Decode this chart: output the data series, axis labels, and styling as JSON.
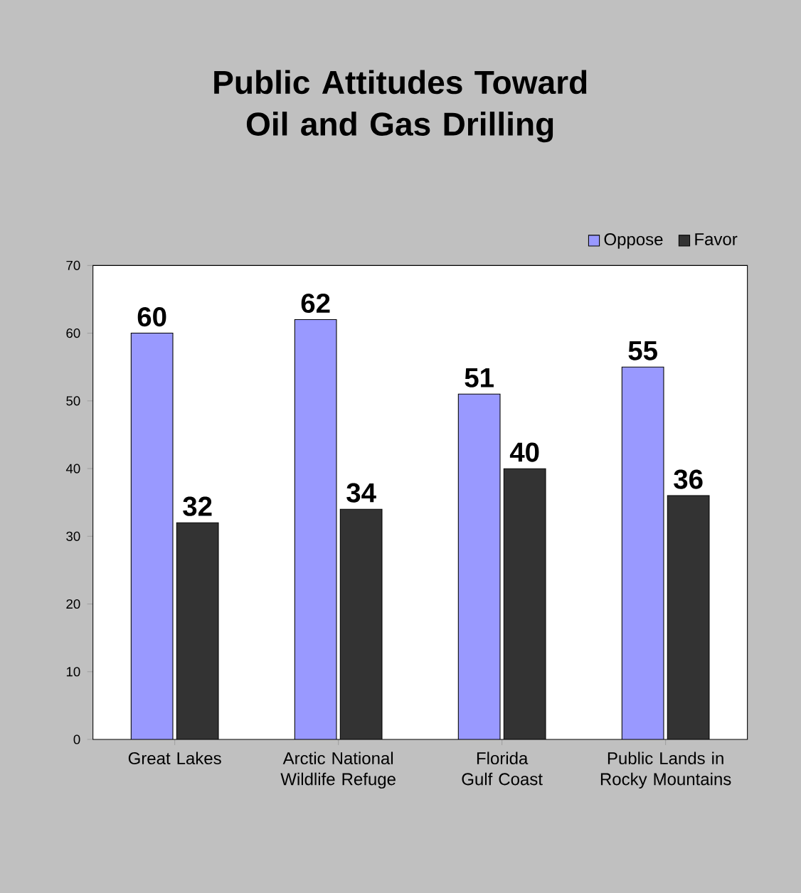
{
  "chart_data": {
    "type": "bar",
    "title": "Public Attitudes Toward Oil and Gas Drilling",
    "categories": [
      "Great Lakes",
      "Arctic National Wildlife Refuge",
      "Florida Gulf Coast",
      "Public Lands in Rocky Mountains"
    ],
    "series": [
      {
        "name": "Oppose",
        "color": "#9999ff",
        "values": [
          60,
          62,
          51,
          55
        ]
      },
      {
        "name": "Favor",
        "color": "#333333",
        "values": [
          32,
          34,
          40,
          36
        ]
      }
    ],
    "ylim": [
      0,
      70
    ],
    "yticks": [
      0,
      10,
      20,
      30,
      40,
      50,
      60,
      70
    ],
    "data_labels": true,
    "legend": "top right",
    "grid": false
  }
}
